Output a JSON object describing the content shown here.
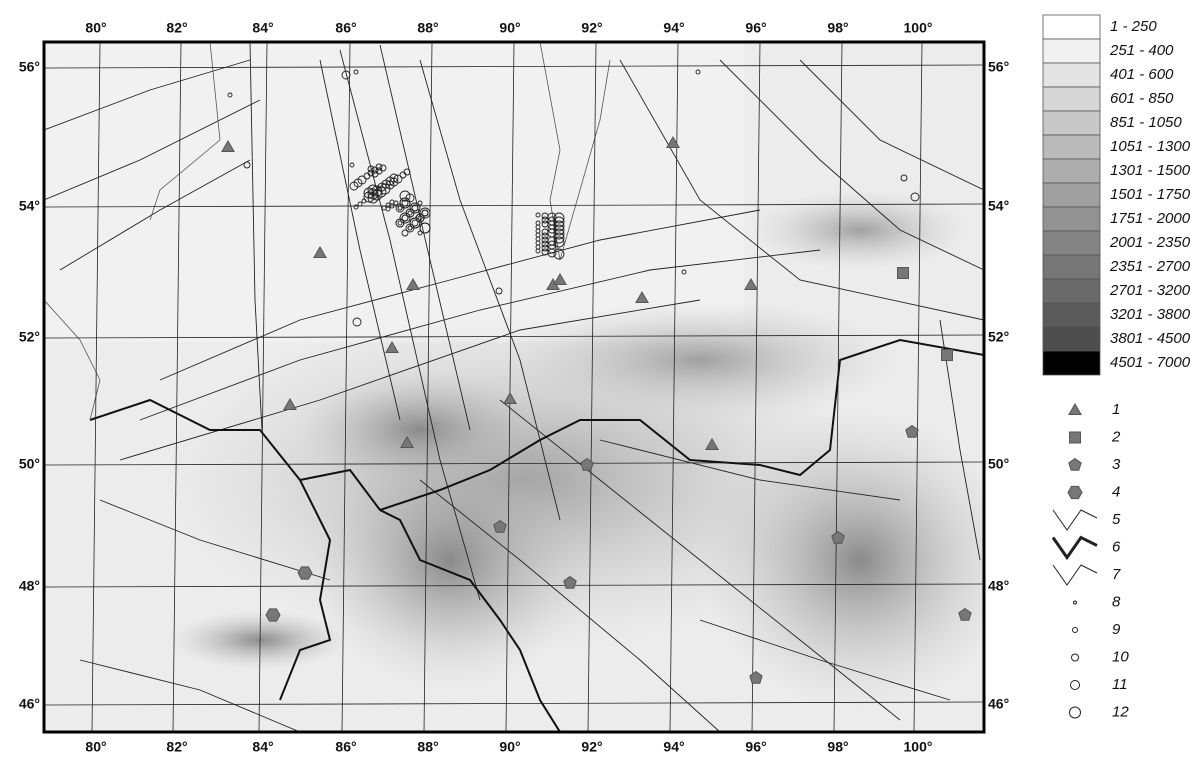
{
  "map": {
    "lon_labels": [
      "80°",
      "82°",
      "84°",
      "86°",
      "88°",
      "90°",
      "92°",
      "94°",
      "96°",
      "98°",
      "100°"
    ],
    "lat_labels": [
      "56°",
      "54°",
      "52°",
      "50°",
      "48°",
      "46°"
    ],
    "legend": {
      "elevation": [
        "1 - 250",
        "251 - 400",
        "401 - 600",
        "601 - 850",
        "851 - 1050",
        "1051 - 1300",
        "1301 - 1500",
        "1501 - 1750",
        "1751 - 2000",
        "2001 - 2350",
        "2351 - 2700",
        "2701 - 3200",
        "3201 - 3800",
        "3801 - 4500",
        "4501 - 7000"
      ],
      "symbols": [
        "1",
        "2",
        "3",
        "4",
        "5",
        "6",
        "7",
        "8",
        "9",
        "10",
        "11",
        "12"
      ]
    }
  }
}
